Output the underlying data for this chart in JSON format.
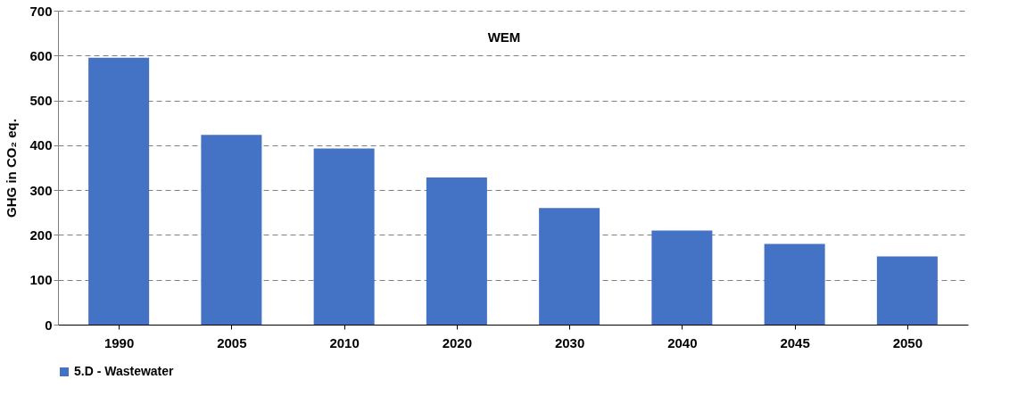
{
  "chart_data": {
    "type": "bar",
    "ylabel": "GHG in CO₂ eq.",
    "categories": [
      "1990",
      "2005",
      "2010",
      "2020",
      "2030",
      "2040",
      "2045",
      "2050"
    ],
    "series": [
      {
        "name": "5.D - Wastewater",
        "color": "#4472c4",
        "values": [
          595,
          423,
          393,
          328,
          260,
          210,
          180,
          152
        ]
      }
    ],
    "ylim": [
      0,
      700
    ],
    "yticks": [
      0,
      100,
      200,
      300,
      400,
      500,
      600,
      700
    ],
    "grid": "y",
    "legend": "bottom",
    "annotations": [
      "WEM"
    ]
  }
}
